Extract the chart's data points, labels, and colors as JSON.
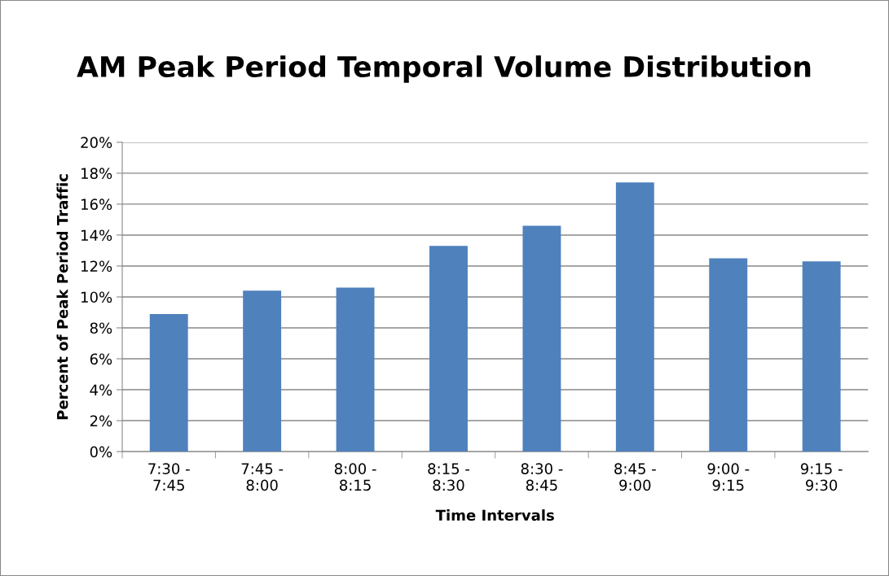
{
  "chart_data": {
    "type": "bar",
    "title": "AM Peak Period Temporal Volume Distribution",
    "xlabel": "Time Intervals",
    "ylabel": "Percent of Peak Period Traffic",
    "categories": [
      "7:30 -\n7:45",
      "7:45 -\n8:00",
      "8:00 -\n8:15",
      "8:15 -\n8:30",
      "8:30 -\n8:45",
      "8:45 -\n9:00",
      "9:00 -\n9:15",
      "9:15 -\n9:30"
    ],
    "values": [
      8.9,
      10.4,
      10.6,
      13.3,
      14.6,
      17.4,
      12.5,
      12.3
    ],
    "color": "#4f81bd",
    "ylim": [
      0,
      20
    ],
    "yticks": [
      {
        "value": 0,
        "label": "0%"
      },
      {
        "value": 2,
        "label": "2%"
      },
      {
        "value": 4,
        "label": "4%"
      },
      {
        "value": 6,
        "label": "6%"
      },
      {
        "value": 8,
        "label": "8%"
      },
      {
        "value": 10,
        "label": "10%"
      },
      {
        "value": 12,
        "label": "12%"
      },
      {
        "value": 14,
        "label": "14%"
      },
      {
        "value": 16,
        "label": "16%"
      },
      {
        "value": 18,
        "label": "18%"
      },
      {
        "value": 20,
        "label": "20%"
      }
    ],
    "grid": "y",
    "legend": false
  }
}
